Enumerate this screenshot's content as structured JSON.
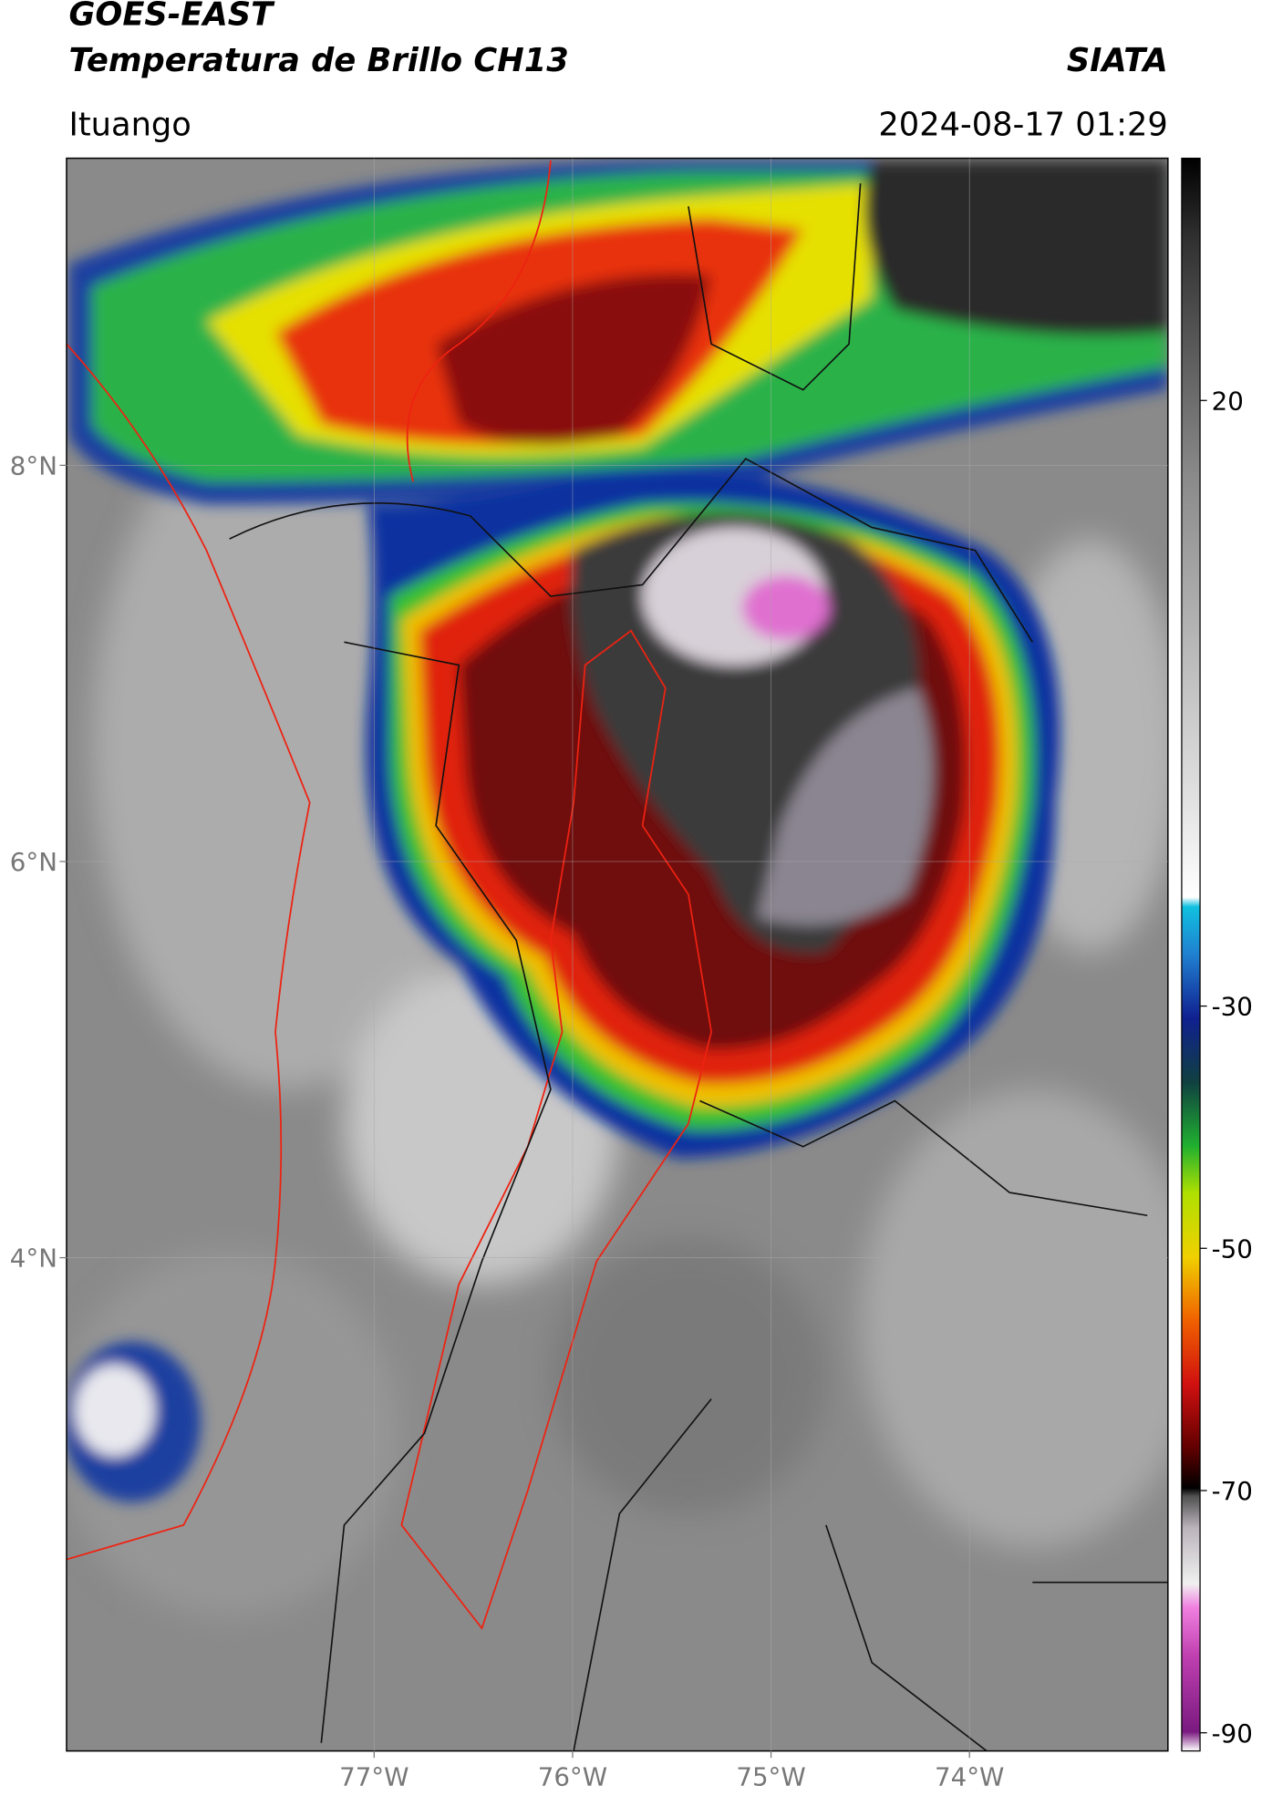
{
  "header": {
    "title": "GOES-EAST",
    "subtitle": "Temperatura de Brillo CH13",
    "agency": "SIATA",
    "region": "Ituango",
    "datetime": "2024-08-17 01:29"
  },
  "map": {
    "xlim": [
      -78.55,
      -73.0
    ],
    "ylim": [
      1.51,
      9.55
    ],
    "xticks": [
      {
        "value": -77,
        "label": "77°W"
      },
      {
        "value": -76,
        "label": "76°W"
      },
      {
        "value": -75,
        "label": "75°W"
      },
      {
        "value": -74,
        "label": "74°W"
      }
    ],
    "yticks": [
      {
        "value": 8,
        "label": "8°N"
      },
      {
        "value": 6,
        "label": "6°N"
      },
      {
        "value": 4,
        "label": "4°N"
      }
    ],
    "grid": true
  },
  "colorbar": {
    "lim": [
      -91.5,
      40
    ],
    "ticks": [
      20,
      -30,
      -50,
      -70,
      -90
    ]
  }
}
